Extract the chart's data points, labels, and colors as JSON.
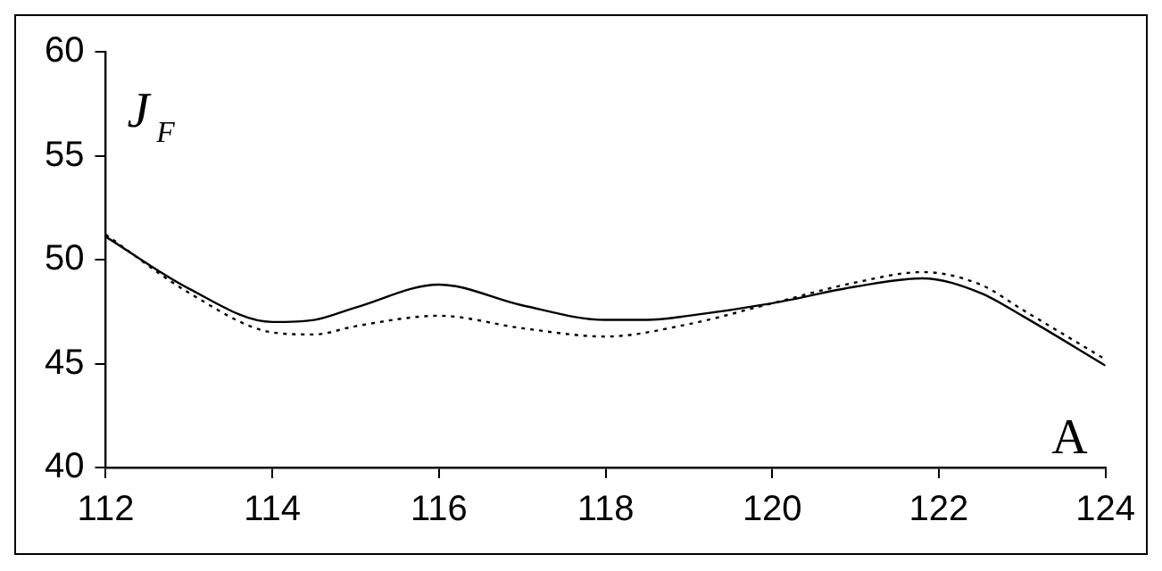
{
  "chart_data": {
    "type": "line",
    "xlabel": "A",
    "ylabel": "J$_{F}$",
    "xlim": [
      112,
      124
    ],
    "xticks": [
      112,
      114,
      116,
      118,
      120,
      122,
      124
    ],
    "ylim": [
      40,
      60
    ],
    "yticks": [
      40,
      45,
      50,
      55,
      60
    ],
    "grid": false,
    "legend": false,
    "marker": "none",
    "series": [
      {
        "color": "#000000",
        "line_style": "solid",
        "x": [
          112,
          113,
          114,
          114.5,
          115,
          116,
          117,
          118,
          118.5,
          119,
          120,
          121,
          121.8,
          122.5,
          123,
          124
        ],
        "values": [
          51.1,
          48.6,
          47.0,
          47.1,
          47.7,
          48.8,
          47.8,
          47.1,
          47.1,
          47.3,
          47.9,
          48.7,
          49.1,
          48.4,
          47.3,
          44.9
        ]
      },
      {
        "color": "#000000",
        "line_style": "dotted",
        "x": [
          112,
          113,
          114,
          114.5,
          115,
          116,
          117,
          118,
          119,
          120,
          121,
          121.8,
          122.5,
          123,
          124
        ],
        "values": [
          51.2,
          48.4,
          46.5,
          46.4,
          46.8,
          47.3,
          46.7,
          46.3,
          46.9,
          47.9,
          48.9,
          49.4,
          48.8,
          47.6,
          45.2
        ]
      }
    ]
  }
}
